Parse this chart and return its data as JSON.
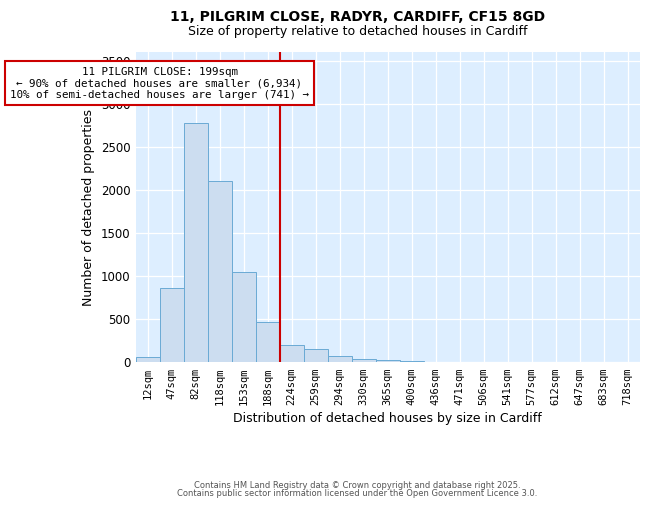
{
  "title_line1": "11, PILGRIM CLOSE, RADYR, CARDIFF, CF15 8GD",
  "title_line2": "Size of property relative to detached houses in Cardiff",
  "xlabel": "Distribution of detached houses by size in Cardiff",
  "ylabel": "Number of detached properties",
  "bar_labels": [
    "12sqm",
    "47sqm",
    "82sqm",
    "118sqm",
    "153sqm",
    "188sqm",
    "224sqm",
    "259sqm",
    "294sqm",
    "330sqm",
    "365sqm",
    "400sqm",
    "436sqm",
    "471sqm",
    "506sqm",
    "541sqm",
    "577sqm",
    "612sqm",
    "647sqm",
    "683sqm",
    "718sqm"
  ],
  "bar_values": [
    60,
    860,
    2780,
    2100,
    1040,
    460,
    200,
    150,
    70,
    40,
    20,
    10,
    5,
    3,
    2,
    1,
    0,
    0,
    0,
    0,
    0
  ],
  "bar_color": "#ccddf0",
  "bar_edge_color": "#6aaad4",
  "red_line_x": 5.5,
  "red_line_color": "#cc0000",
  "annotation_text": "11 PILGRIM CLOSE: 199sqm\n← 90% of detached houses are smaller (6,934)\n10% of semi-detached houses are larger (741) →",
  "annotation_box_color": "#ffffff",
  "annotation_box_edge": "#cc0000",
  "ylim": [
    0,
    3600
  ],
  "yticks": [
    0,
    500,
    1000,
    1500,
    2000,
    2500,
    3000,
    3500
  ],
  "footer_line1": "Contains HM Land Registry data © Crown copyright and database right 2025.",
  "footer_line2": "Contains public sector information licensed under the Open Government Licence 3.0.",
  "fig_bg_color": "#ffffff",
  "plot_bg_color": "#ddeeff"
}
